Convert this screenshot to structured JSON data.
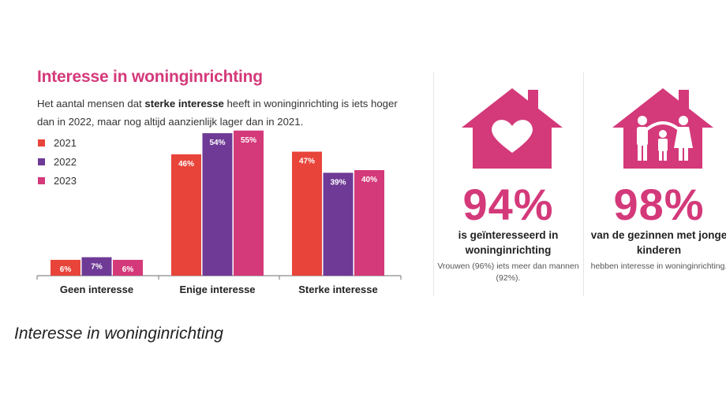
{
  "title": "Interesse in woninginrichting",
  "subtitle": {
    "before": "Het aantal mensen dat ",
    "bold": "sterke interesse",
    "after": " heeft in woninginrichting is iets hoger dan in 2022, maar nog altijd aanzienlijk lager dan in 2021."
  },
  "colors": {
    "accent": "#d4397a",
    "y2021": "#e8443a",
    "y2022": "#6f3a96",
    "y2023": "#d4397a"
  },
  "chart_data": {
    "type": "bar",
    "categories": [
      "Geen interesse",
      "Enige interesse",
      "Sterke interesse"
    ],
    "series": [
      {
        "name": "2021",
        "color": "#e8443a",
        "values": [
          6,
          46,
          47
        ],
        "labels": [
          "6%",
          "46%",
          "47%"
        ]
      },
      {
        "name": "2022",
        "color": "#6f3a96",
        "values": [
          7,
          54,
          39
        ],
        "labels": [
          "7%",
          "54%",
          "39%"
        ]
      },
      {
        "name": "2023",
        "color": "#d4397a",
        "values": [
          6,
          55,
          40
        ],
        "labels": [
          "6%",
          "55%",
          "40%"
        ]
      }
    ],
    "ylim": [
      0,
      60
    ],
    "legend": "top-left"
  },
  "stats": [
    {
      "icon": "house-heart-icon",
      "value": "94%",
      "main": "is geïnteresseerd in woninginrichting",
      "sub": "Vrouwen (96%) iets meer dan mannen (92%)."
    },
    {
      "icon": "house-family-icon",
      "value": "98%",
      "main": "van de gezinnen met jonge kinderen",
      "sub": "hebben interesse in woninginrichting."
    }
  ],
  "caption": "Interesse in woninginrichting"
}
